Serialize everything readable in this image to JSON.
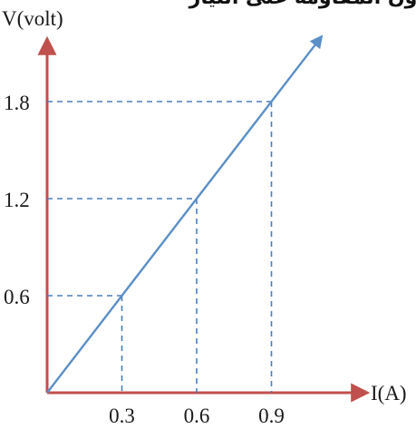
{
  "header_text": "بدون المقاومة على التيار",
  "colors": {
    "axis": "#c0504d",
    "line": "#5b8fc7",
    "guide": "#4a7ebb",
    "text": "#1a1a1a"
  },
  "chart_data": {
    "type": "line",
    "title": "",
    "xlabel": "I(A)",
    "ylabel": "V(volt)",
    "xlim": [
      0,
      1.2
    ],
    "ylim": [
      0,
      2.4
    ],
    "x_ticks": [
      "0.3",
      "0.6",
      "0.9"
    ],
    "y_ticks": [
      "0.6",
      "1.2",
      "1.8"
    ],
    "series": [
      {
        "x": [
          0,
          0.3,
          0.6,
          0.9,
          1.1
        ],
        "y": [
          0,
          0.6,
          1.2,
          1.8,
          2.2
        ]
      }
    ],
    "guide_points": [
      {
        "x": 0.3,
        "y": 0.6
      },
      {
        "x": 0.6,
        "y": 1.2
      },
      {
        "x": 0.9,
        "y": 1.8
      }
    ],
    "grid": false,
    "legend": "none"
  }
}
